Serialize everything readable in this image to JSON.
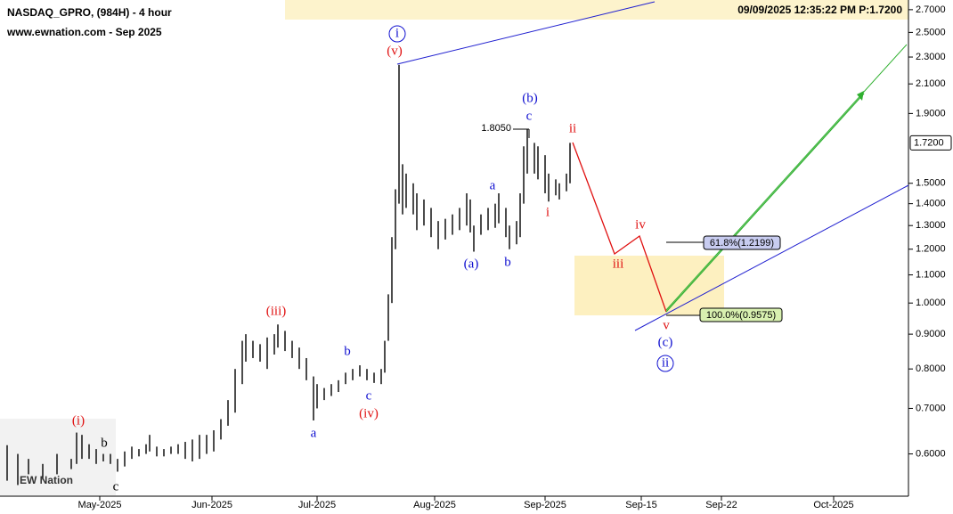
{
  "chart_data": {
    "type": "range",
    "title": "NASDAQ_GPRO, (984H) - 4 hour",
    "subtitle": "www.ewnation.com  - Sep 2025",
    "timestamp": "09/09/2025 12:35:22 PM  P:1.7200",
    "logo": "EW Nation",
    "log_scale": true,
    "color": "#000000",
    "xlim": [
      0,
      255
    ],
    "xticks": [
      {
        "value": 28,
        "label": "May-2025"
      },
      {
        "value": 59.5,
        "label": "Jun-2025"
      },
      {
        "value": 89,
        "label": "Jul-2025"
      },
      {
        "value": 122,
        "label": "Aug-2025"
      },
      {
        "value": 153,
        "label": "Sep-2025"
      },
      {
        "value": 180,
        "label": "Sep-15"
      },
      {
        "value": 202.5,
        "label": "Sep-22"
      },
      {
        "value": 234,
        "label": "Oct-2025"
      }
    ],
    "ylim": [
      0.52,
      2.79
    ],
    "yticks": [
      {
        "value": 0.6,
        "label": "0.6000"
      },
      {
        "value": 0.7,
        "label": "0.7000"
      },
      {
        "value": 0.8,
        "label": "0.8000"
      },
      {
        "value": 0.9,
        "label": "0.9000"
      },
      {
        "value": 1.0,
        "label": "1.0000"
      },
      {
        "value": 1.1,
        "label": "1.1000"
      },
      {
        "value": 1.2,
        "label": "1.2000"
      },
      {
        "value": 1.3,
        "label": "1.3000"
      },
      {
        "value": 1.4,
        "label": "1.4000"
      },
      {
        "value": 1.5,
        "label": "1.5000"
      },
      {
        "value": 1.9,
        "label": "1.9000"
      },
      {
        "value": 2.1,
        "label": "2.1000"
      },
      {
        "value": 2.3,
        "label": "2.3000"
      },
      {
        "value": 2.5,
        "label": "2.5000"
      },
      {
        "value": 2.7,
        "label": "2.7000"
      }
    ],
    "last_price": {
      "value": 1.72,
      "label": "1.7200"
    },
    "x": [
      2,
      5,
      8,
      12,
      16,
      20,
      21.5,
      23,
      25,
      27,
      29,
      31,
      33,
      35,
      37,
      39,
      41,
      42,
      44,
      46,
      48,
      50,
      52,
      54,
      56,
      58,
      60,
      62,
      64,
      66,
      68,
      69,
      71,
      73,
      75,
      77,
      78,
      80,
      82,
      84,
      86,
      88,
      89,
      91,
      93,
      95,
      97,
      99,
      101,
      103,
      105,
      107,
      108,
      109,
      110,
      111,
      112,
      113,
      114,
      116,
      117,
      119,
      121,
      123,
      125,
      127,
      129,
      131,
      132,
      133,
      135,
      137,
      139,
      140,
      142,
      143,
      145,
      146,
      147,
      148,
      150,
      151,
      153,
      154,
      156,
      157,
      159,
      160
    ],
    "high": [
      0.618,
      0.6,
      0.59,
      0.58,
      0.6,
      0.59,
      0.645,
      0.64,
      0.62,
      0.61,
      0.6,
      0.6,
      0.59,
      0.605,
      0.615,
      0.61,
      0.62,
      0.64,
      0.615,
      0.61,
      0.615,
      0.62,
      0.625,
      0.63,
      0.64,
      0.64,
      0.65,
      0.675,
      0.72,
      0.8,
      0.88,
      0.9,
      0.88,
      0.87,
      0.89,
      0.9,
      0.93,
      0.91,
      0.88,
      0.86,
      0.83,
      0.78,
      0.76,
      0.75,
      0.76,
      0.77,
      0.79,
      0.8,
      0.81,
      0.8,
      0.79,
      0.8,
      0.88,
      1.03,
      1.25,
      1.47,
      2.24,
      1.6,
      1.55,
      1.5,
      1.45,
      1.42,
      1.38,
      1.32,
      1.33,
      1.35,
      1.38,
      1.45,
      1.42,
      1.3,
      1.35,
      1.38,
      1.4,
      1.45,
      1.38,
      1.3,
      1.32,
      1.45,
      1.7,
      1.8,
      1.72,
      1.7,
      1.65,
      1.55,
      1.52,
      1.5,
      1.55,
      1.72
    ],
    "low": [
      0.548,
      0.54,
      0.56,
      0.55,
      0.56,
      0.57,
      0.58,
      0.59,
      0.59,
      0.58,
      0.585,
      0.58,
      0.565,
      0.575,
      0.59,
      0.595,
      0.6,
      0.605,
      0.595,
      0.595,
      0.6,
      0.6,
      0.59,
      0.585,
      0.59,
      0.6,
      0.605,
      0.63,
      0.66,
      0.69,
      0.76,
      0.82,
      0.83,
      0.82,
      0.8,
      0.84,
      0.86,
      0.85,
      0.83,
      0.8,
      0.77,
      0.672,
      0.7,
      0.72,
      0.73,
      0.74,
      0.76,
      0.77,
      0.78,
      0.77,
      0.763,
      0.76,
      0.79,
      0.88,
      1.0,
      1.2,
      1.4,
      1.35,
      1.38,
      1.35,
      1.28,
      1.3,
      1.25,
      1.2,
      1.24,
      1.26,
      1.28,
      1.3,
      1.27,
      1.19,
      1.26,
      1.28,
      1.29,
      1.31,
      1.25,
      1.2,
      1.22,
      1.25,
      1.4,
      1.55,
      1.55,
      1.52,
      1.45,
      1.41,
      1.44,
      1.42,
      1.46,
      1.5
    ],
    "annotations": {
      "high_label": "1.8050",
      "fib_618": "61.8%(1.2199)",
      "fib_100": "100.0%(0.9575)"
    },
    "wave_labels": [
      "(i)",
      "b",
      "c",
      "(iii)",
      "a",
      "b",
      "c",
      "(iv)",
      "(v)",
      "i",
      "(a)",
      "a",
      "b",
      "(b)",
      "c",
      "i",
      "ii",
      "iii",
      "iv",
      "v",
      "(c)",
      "ii"
    ]
  }
}
